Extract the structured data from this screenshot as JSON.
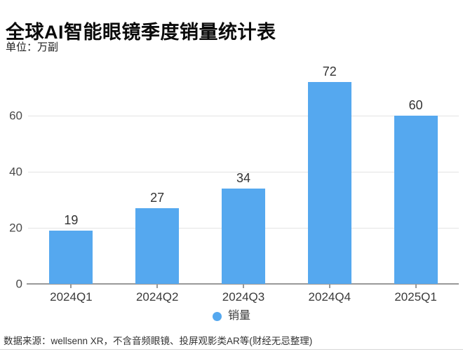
{
  "header": {
    "title": "全球AI智能眼镜季度销量统计表",
    "unit_label": "单位：万副"
  },
  "chart_data": {
    "type": "bar",
    "title": "全球AI智能眼镜季度销量统计表",
    "unit": "万副",
    "categories": [
      "2024Q1",
      "2024Q2",
      "2024Q3",
      "2024Q4",
      "2025Q1"
    ],
    "series": [
      {
        "name": "销量",
        "values": [
          19,
          27,
          34,
          72,
          60
        ]
      }
    ],
    "xlabel": "",
    "ylabel": "万副",
    "ylim": [
      0,
      75
    ],
    "yticks": [
      0,
      20,
      40,
      60
    ],
    "grid": true,
    "legend_position": "bottom",
    "bar_color": "#55A8EF",
    "gridline_color": "#e3e3e3",
    "axis_color": "#999999"
  },
  "legend": {
    "label": "销量",
    "color": "#55A8EF"
  },
  "footer": {
    "source": "数据来源：wellsenn XR，不含音频眼镜、投屏观影类AR等(财经无忌整理)"
  }
}
